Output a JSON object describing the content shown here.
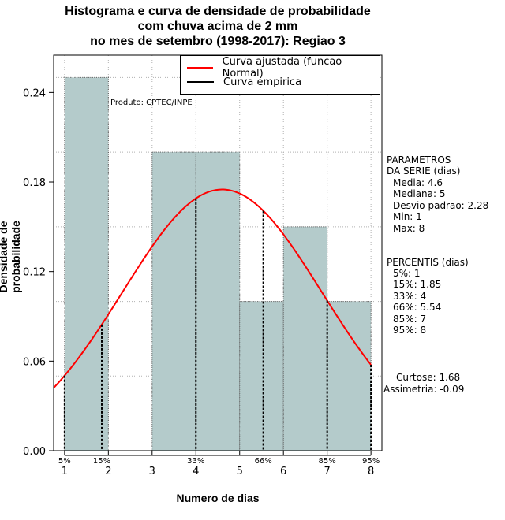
{
  "title": {
    "line1": "Histograma e curva de densidade de probabilidade",
    "line2": "com chuva acima de 2 mm",
    "line3": "no mes de setembro (1998-2017): Regiao 3"
  },
  "producer": "Produto: CPTEC/INPE",
  "legend": {
    "fitted": "Curva ajustada (funcao Normal)",
    "empirical": "Curva empirica"
  },
  "parameters": {
    "heading1": "PARAMETROS",
    "heading2": "DA SERIE (dias)",
    "media": "Media: 4.6",
    "mediana": "Mediana: 5",
    "desvio": "Desvio padrao: 2.28",
    "min": "Min: 1",
    "max": "Max: 8"
  },
  "percentis": {
    "heading": "PERCENTIS (dias)",
    "p5": "5%: 1",
    "p15": "15%: 1.85",
    "p33": "33%: 4",
    "p66": "66%: 5.54",
    "p85": "85%: 7",
    "p95": "95%: 8"
  },
  "shape": {
    "curtose": "Curtose: 1.68",
    "assimetria": "Assimetria: -0.09"
  },
  "colors": {
    "bar_fill": "#b4cbcb",
    "fitted_curve": "#ff0000",
    "empirical_curve": "#000000"
  },
  "chart_data": {
    "type": "bar",
    "title": "Histograma e curva de densidade de probabilidade com chuva acima de 2 mm no mes de setembro (1998-2017): Regiao 3",
    "xlabel": "Numero de dias",
    "ylabel": "Densidade de probabilidade",
    "xlim": [
      0.75,
      8.25
    ],
    "ylim": [
      0,
      0.265
    ],
    "xticks": [
      1,
      2,
      3,
      4,
      5,
      6,
      7,
      8
    ],
    "yticks": [
      "0.00",
      "0.06",
      "0.12",
      "0.18",
      "0.24"
    ],
    "grid": true,
    "legend_position": "top-right",
    "bins": [
      {
        "x0": 1,
        "x1": 2,
        "density": 0.25
      },
      {
        "x0": 2,
        "x1": 3,
        "density": 0
      },
      {
        "x0": 3,
        "x1": 4,
        "density": 0.2
      },
      {
        "x0": 4,
        "x1": 5,
        "density": 0.2
      },
      {
        "x0": 5,
        "x1": 6,
        "density": 0.1
      },
      {
        "x0": 6,
        "x1": 7,
        "density": 0.15
      },
      {
        "x0": 7,
        "x1": 8,
        "density": 0.1
      }
    ],
    "normal_fit": {
      "mean": 4.6,
      "sd": 2.28
    },
    "percentiles": [
      {
        "label": "5%",
        "x": 1
      },
      {
        "label": "15%",
        "x": 1.85
      },
      {
        "label": "33%",
        "x": 4
      },
      {
        "label": "66%",
        "x": 5.54
      },
      {
        "label": "85%",
        "x": 7
      },
      {
        "label": "95%",
        "x": 8
      }
    ]
  }
}
